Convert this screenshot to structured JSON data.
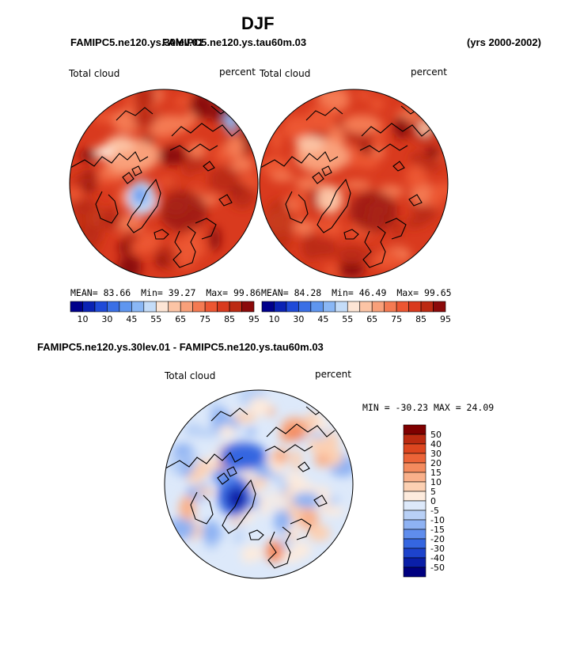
{
  "page": {
    "title": "DJF",
    "left_case": "FAMIPC5.ne120.ys.30lev.01",
    "right_case": "FAMIPC5.ne120.ys.tau60m.03",
    "years": "(yrs 2000-2002)",
    "diff_title": "FAMIPC5.ne120.ys.30lev.01 - FAMIPC5.ne120.ys.tau60m.03"
  },
  "panels": [
    {
      "label": "Total cloud",
      "units": "percent",
      "stats": {
        "mean_label": "MEAN=",
        "mean": "83.66",
        "min_label": "Min=",
        "min": "39.27",
        "max_label": "Max=",
        "max": "99.86"
      }
    },
    {
      "label": "Total cloud",
      "units": "percent",
      "stats": {
        "mean_label": "MEAN=",
        "mean": "84.28",
        "min_label": "Min=",
        "min": "46.49",
        "max_label": "Max=",
        "max": "99.65"
      }
    }
  ],
  "diff_panel": {
    "label": "Total cloud",
    "units": "percent",
    "minmax": "MIN = -30.23 MAX =  24.09"
  },
  "colors": {
    "abs_scale": [
      "#00008b",
      "#0a22b4",
      "#1f4ad8",
      "#3a6fe6",
      "#5f96ef",
      "#8ab7f5",
      "#c4dcf8",
      "#fde5d5",
      "#fcc4a5",
      "#f9a07a",
      "#f47a52",
      "#ec5632",
      "#d93a1e",
      "#bc2a13",
      "#8b0a0a"
    ],
    "diff_scale": [
      "#000080",
      "#0a1fa8",
      "#1d43cc",
      "#3566e0",
      "#5f8ded",
      "#8eb2f3",
      "#b8d0f6",
      "#dde9fa",
      "#fdebdd",
      "#fcd0b2",
      "#f9b08a",
      "#f48b5e",
      "#ec6438",
      "#dd461f",
      "#bb2a10",
      "#7f0000"
    ],
    "land_outline": "#000000"
  },
  "chart_data": [
    {
      "type": "heatmap",
      "title": "Total cloud",
      "units": "percent",
      "projection": "north polar stereographic",
      "colorbar_ticks": [
        "10",
        "30",
        "45",
        "55",
        "65",
        "75",
        "85",
        "95"
      ],
      "mean": 83.66,
      "min": 39.27,
      "max": 99.86
    },
    {
      "type": "heatmap",
      "title": "Total cloud",
      "units": "percent",
      "projection": "north polar stereographic",
      "colorbar_ticks": [
        "10",
        "30",
        "45",
        "55",
        "65",
        "75",
        "85",
        "95"
      ],
      "mean": 84.28,
      "min": 46.49,
      "max": 99.65
    },
    {
      "type": "heatmap",
      "title": "Total cloud",
      "units": "percent",
      "projection": "north polar stereographic",
      "colorbar_ticks": [
        "50",
        "40",
        "30",
        "20",
        "15",
        "10",
        "5",
        "0",
        "-5",
        "-10",
        "-15",
        "-20",
        "-30",
        "-40",
        "-50"
      ],
      "min": -30.23,
      "max": 24.09
    }
  ]
}
